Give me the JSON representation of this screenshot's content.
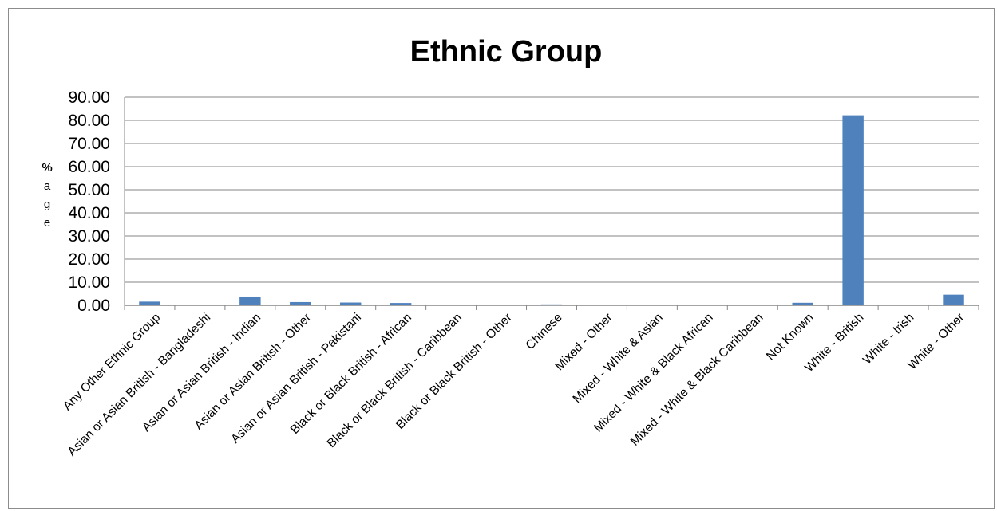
{
  "chart_data": {
    "type": "bar",
    "title": "Ethnic Group",
    "ylabel": "%age",
    "xlabel": "",
    "ylim": [
      0,
      90
    ],
    "ytick_step": 10,
    "ytick_labels": [
      "0.00",
      "10.00",
      "20.00",
      "30.00",
      "40.00",
      "50.00",
      "60.00",
      "70.00",
      "80.00",
      "90.00"
    ],
    "grid": true,
    "legend": "none",
    "bar_color": "#4f81bd",
    "categories": [
      "Any Other Ethnic Group",
      "Asian or Asian British - Bangladeshi",
      "Asian or Asian British - Indian",
      "Asian or Asian British - Other",
      "Asian or Asian British - Pakistani",
      "Black or Black British - African",
      "Black or Black British - Caribbean",
      "Black or Black British - Other",
      "Chinese",
      "Mixed - Other",
      "Mixed - White & Asian",
      "Mixed - White & Black African",
      "Mixed - White & Black Caribbean",
      "Not Known",
      "White - British",
      "White - Irish",
      "White - Other"
    ],
    "values": [
      1.6,
      0.1,
      3.8,
      1.4,
      1.2,
      1.0,
      0.1,
      0.1,
      0.4,
      0.3,
      0.2,
      0.1,
      0.2,
      1.1,
      82.2,
      0.3,
      4.6
    ]
  }
}
